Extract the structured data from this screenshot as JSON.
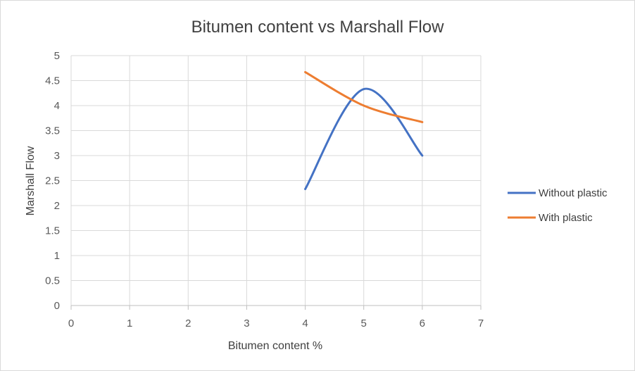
{
  "chart_data": {
    "type": "line",
    "title": "Bitumen content vs Marshall Flow",
    "xlabel": "Bitumen content %",
    "ylabel": "Marshall Flow",
    "xlim": [
      0,
      7
    ],
    "ylim": [
      0,
      5
    ],
    "x_ticks": [
      "0",
      "1",
      "2",
      "3",
      "4",
      "5",
      "6",
      "7"
    ],
    "y_ticks": [
      "0",
      "0.5",
      "1",
      "1.5",
      "2",
      "2.5",
      "3",
      "3.5",
      "4",
      "4.5",
      "5"
    ],
    "grid": true,
    "smooth": true,
    "legend_position": "right",
    "series": [
      {
        "name": "Without plastic",
        "color": "#4472C4",
        "x": [
          4,
          5,
          6
        ],
        "y": [
          2.33,
          4.33,
          3.0
        ]
      },
      {
        "name": "With plastic",
        "color": "#ED7D31",
        "x": [
          4,
          5,
          6
        ],
        "y": [
          4.67,
          4.0,
          3.67
        ]
      }
    ]
  }
}
